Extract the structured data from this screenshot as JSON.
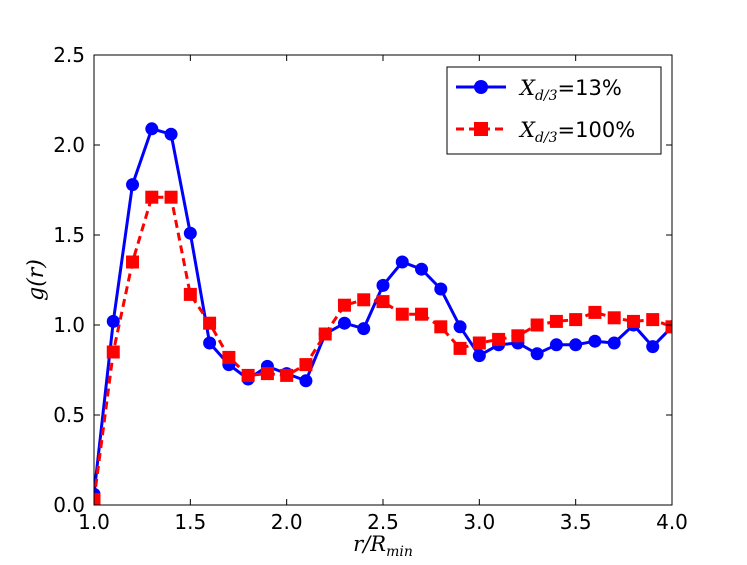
{
  "chart_data": {
    "type": "line",
    "title": "",
    "xlabel": "r/R",
    "xlabel_sub": "min",
    "ylabel": "g(r)",
    "xlim": [
      1.0,
      4.0
    ],
    "ylim": [
      0.0,
      2.5
    ],
    "xticks": [
      "1.0",
      "1.5",
      "2.0",
      "2.5",
      "3.0",
      "3.5",
      "4.0"
    ],
    "yticks": [
      "0.0",
      "0.5",
      "1.0",
      "1.5",
      "2.0",
      "2.5"
    ],
    "legend_position": "top-right",
    "x": [
      1.0,
      1.1,
      1.2,
      1.3,
      1.4,
      1.5,
      1.6,
      1.7,
      1.8,
      1.9,
      2.0,
      2.1,
      2.2,
      2.3,
      2.4,
      2.5,
      2.6,
      2.7,
      2.8,
      2.9,
      3.0,
      3.1,
      3.2,
      3.3,
      3.4,
      3.5,
      3.6,
      3.7,
      3.8,
      3.9,
      4.0
    ],
    "series": [
      {
        "name": "X_{d/3}=13%",
        "legend_var": "X",
        "legend_sub": "d/3",
        "legend_suffix": "=13%",
        "color": "#0000ff",
        "marker": "circle",
        "linestyle": "solid",
        "values": [
          0.06,
          1.02,
          1.78,
          2.09,
          2.06,
          1.51,
          0.9,
          0.78,
          0.7,
          0.77,
          0.73,
          0.69,
          0.95,
          1.01,
          0.98,
          1.22,
          1.35,
          1.31,
          1.2,
          0.99,
          0.83,
          0.89,
          0.9,
          0.84,
          0.89,
          0.89,
          0.91,
          0.9,
          1.0,
          0.88,
          0.99
        ]
      },
      {
        "name": "X_{d/3}=100%",
        "legend_var": "X",
        "legend_sub": "d/3",
        "legend_suffix": "=100%",
        "color": "#ff0000",
        "marker": "square",
        "linestyle": "dashed",
        "values": [
          0.03,
          0.85,
          1.35,
          1.71,
          1.71,
          1.17,
          1.01,
          0.82,
          0.72,
          0.73,
          0.72,
          0.78,
          0.95,
          1.11,
          1.14,
          1.13,
          1.06,
          1.06,
          0.99,
          0.87,
          0.9,
          0.92,
          0.94,
          1.0,
          1.02,
          1.03,
          1.07,
          1.04,
          1.02,
          1.03,
          0.99
        ]
      }
    ]
  }
}
